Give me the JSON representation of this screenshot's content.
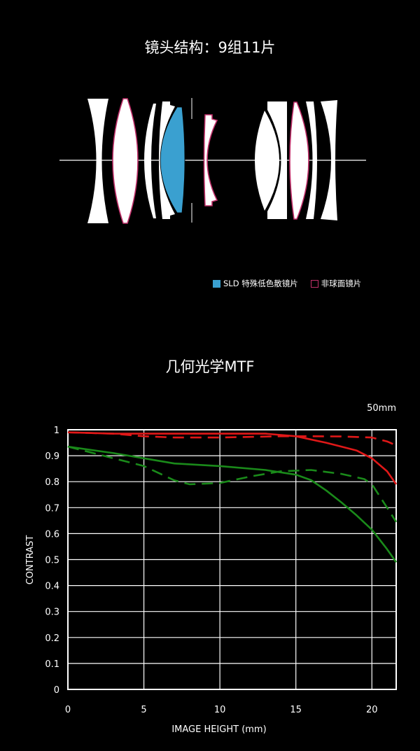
{
  "lens_section": {
    "title": "镜头结构：9组11片",
    "legend": [
      {
        "label": "SLD 特殊低色散镜片",
        "color": "#3aa0d0",
        "style": "filled"
      },
      {
        "label": "非球面镜片",
        "color": "#c0306a",
        "style": "outline"
      }
    ]
  },
  "mtf_section": {
    "title": "几何光学MTF"
  },
  "chart_data": {
    "type": "line",
    "annotation": "50mm",
    "xlabel": "IMAGE HEIGHT (mm)",
    "ylabel": "CONTRAST",
    "xlim": [
      0,
      21.6
    ],
    "ylim": [
      0,
      1
    ],
    "x_ticks": [
      "0",
      "5",
      "10",
      "15",
      "20"
    ],
    "y_ticks": [
      "0",
      "0.1",
      "0.2",
      "0.3",
      "0.4",
      "0.5",
      "0.6",
      "0.7",
      "0.8",
      "0.9",
      "1"
    ],
    "grid": true,
    "series": [
      {
        "color": "#e01818",
        "dash": false,
        "x": [
          0,
          3,
          5,
          8,
          10,
          13,
          15,
          17,
          19,
          20,
          21,
          21.6
        ],
        "y": [
          0.99,
          0.985,
          0.985,
          0.985,
          0.985,
          0.985,
          0.975,
          0.95,
          0.92,
          0.89,
          0.84,
          0.79
        ]
      },
      {
        "color": "#e01818",
        "dash": true,
        "x": [
          0,
          3,
          5,
          7,
          10,
          14,
          16,
          18,
          20,
          21,
          21.6
        ],
        "y": [
          0.99,
          0.985,
          0.975,
          0.97,
          0.97,
          0.975,
          0.975,
          0.974,
          0.97,
          0.955,
          0.94
        ]
      },
      {
        "color": "#1a8a1a",
        "dash": false,
        "x": [
          0,
          3,
          5,
          7,
          10,
          13,
          15,
          16,
          17,
          18,
          19,
          20,
          21,
          21.6
        ],
        "y": [
          0.935,
          0.91,
          0.89,
          0.87,
          0.86,
          0.845,
          0.827,
          0.806,
          0.766,
          0.72,
          0.67,
          0.615,
          0.54,
          0.49
        ]
      },
      {
        "color": "#1a8a1a",
        "dash": true,
        "x": [
          0,
          2,
          5,
          7,
          8,
          10,
          12,
          14,
          16,
          18,
          19.5,
          20,
          21,
          21.6
        ],
        "y": [
          0.935,
          0.905,
          0.86,
          0.805,
          0.79,
          0.795,
          0.82,
          0.84,
          0.845,
          0.83,
          0.81,
          0.79,
          0.7,
          0.645
        ]
      }
    ]
  }
}
